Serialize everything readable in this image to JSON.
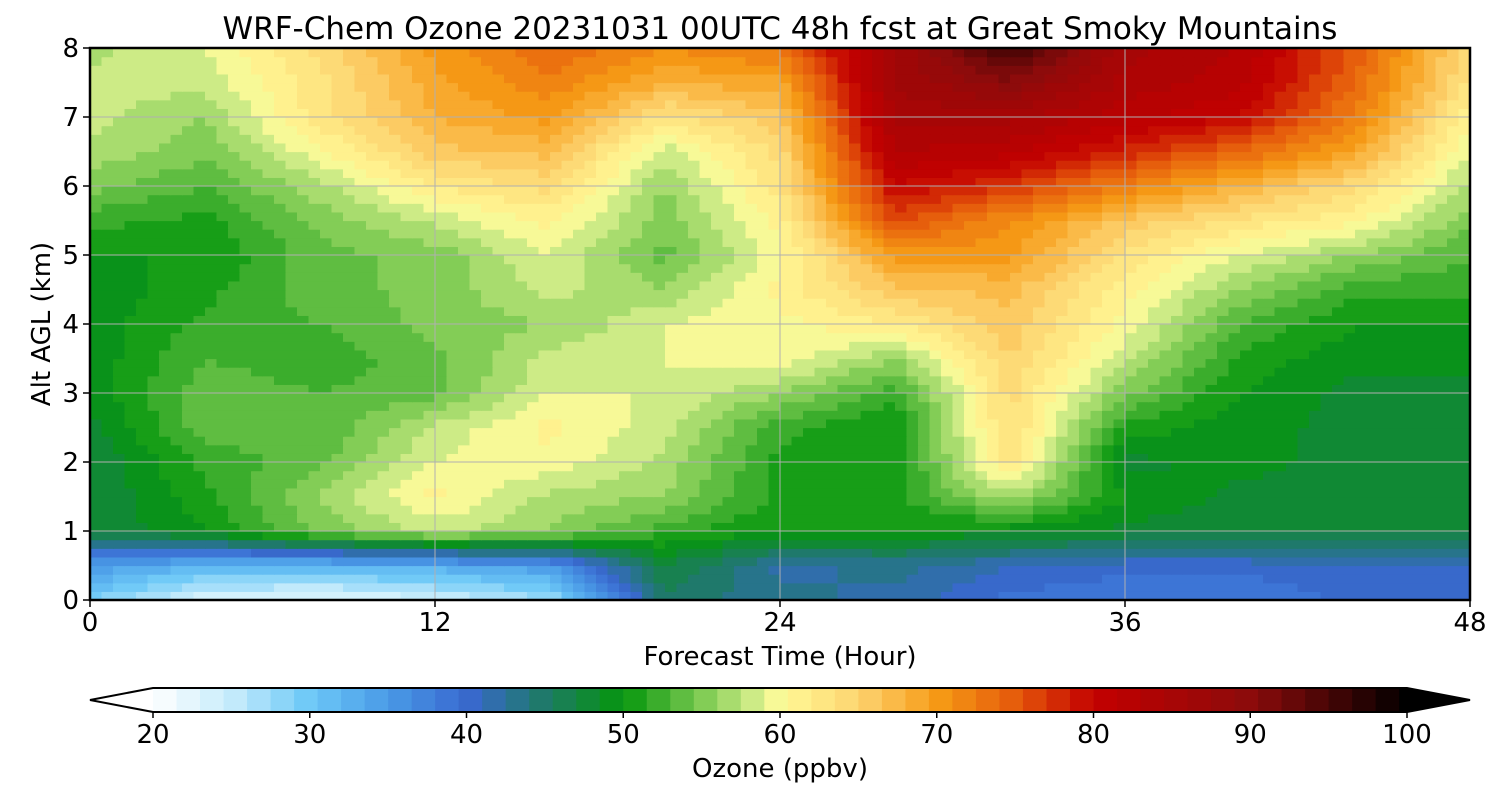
{
  "chart_data": {
    "type": "heatmap",
    "title": "WRF-Chem Ozone  20231031 00UTC 48h fcst at Great Smoky Mountains",
    "xlabel": "Forecast Time (Hour)",
    "ylabel": "Alt AGL (km)",
    "xlim": [
      0,
      48
    ],
    "ylim": [
      0,
      8
    ],
    "x_ticks": [
      "0",
      "12",
      "24",
      "36",
      "48"
    ],
    "y_ticks": [
      "0",
      "1",
      "2",
      "3",
      "4",
      "5",
      "6",
      "7",
      "8"
    ],
    "grid": true,
    "x": [
      0,
      4,
      8,
      12,
      16,
      20,
      24,
      28,
      32,
      36,
      40,
      44,
      48
    ],
    "y": [
      0,
      0.5,
      1,
      1.5,
      2,
      2.5,
      3,
      3.5,
      4,
      4.5,
      5,
      5.5,
      6,
      6.5,
      7,
      7.5,
      8
    ],
    "z": [
      [
        29,
        23,
        22,
        24,
        27,
        45,
        43,
        42,
        39,
        38,
        38,
        40,
        40
      ],
      [
        35,
        32,
        32,
        33,
        35,
        47,
        42,
        43,
        41,
        40,
        40,
        41,
        41
      ],
      [
        47,
        50,
        55,
        58,
        56,
        52,
        50,
        50,
        49,
        48,
        47,
        47,
        47
      ],
      [
        47,
        51,
        56,
        61,
        57,
        56,
        51,
        51,
        57,
        50,
        48,
        48,
        48
      ],
      [
        47,
        52,
        54,
        59,
        60,
        57,
        51,
        50,
        63,
        48,
        49,
        48,
        48
      ],
      [
        48,
        54,
        53,
        58,
        61,
        58,
        52,
        50,
        64,
        51,
        49,
        48,
        48
      ],
      [
        49,
        54,
        53,
        54,
        59,
        59,
        56,
        52,
        64,
        55,
        50,
        48,
        48
      ],
      [
        49,
        53,
        52,
        54,
        58,
        59,
        60,
        56,
        65,
        58,
        51,
        49,
        49
      ],
      [
        49,
        52,
        53,
        55,
        56,
        59,
        60,
        62,
        66,
        60,
        53,
        50,
        50
      ],
      [
        49,
        51,
        54,
        55,
        58,
        56,
        61,
        66,
        67,
        61,
        56,
        52,
        52
      ],
      [
        50,
        50,
        54,
        55,
        59,
        54,
        60,
        70,
        70,
        63,
        59,
        56,
        53
      ],
      [
        52,
        51,
        55,
        58,
        61,
        55,
        61,
        76,
        71,
        66,
        63,
        61,
        55
      ],
      [
        55,
        53,
        57,
        62,
        64,
        56,
        63,
        80,
        77,
        72,
        68,
        64,
        57
      ],
      [
        57,
        55,
        60,
        66,
        67,
        58,
        64,
        83,
        82,
        78,
        74,
        69,
        59
      ],
      [
        58,
        56,
        63,
        68,
        70,
        63,
        66,
        85,
        85,
        82,
        80,
        72,
        61
      ],
      [
        58,
        58,
        63,
        69,
        72,
        68,
        69,
        86,
        90,
        84,
        82,
        74,
        63
      ],
      [
        57,
        59,
        64,
        70,
        74,
        71,
        73,
        86,
        96,
        85,
        83,
        75,
        64
      ]
    ],
    "colorbar": {
      "label": "Ozone  (ppbv)",
      "min": 20,
      "max": 100,
      "step": 1.5,
      "ticks": [
        "20",
        "30",
        "40",
        "50",
        "60",
        "70",
        "80",
        "90",
        "100"
      ],
      "extend": "both",
      "color_stops": [
        [
          20,
          "#ffffff"
        ],
        [
          25,
          "#c6ecfb"
        ],
        [
          30,
          "#6cc8f7"
        ],
        [
          35,
          "#4a9ae6"
        ],
        [
          40,
          "#3968d0"
        ],
        [
          45,
          "#1e7a66"
        ],
        [
          50,
          "#05960c"
        ],
        [
          55,
          "#7dca52"
        ],
        [
          59,
          "#dff392"
        ],
        [
          60,
          "#fffb98"
        ],
        [
          65,
          "#fdd470"
        ],
        [
          70,
          "#f69b16"
        ],
        [
          75,
          "#e55b0b"
        ],
        [
          80,
          "#c30000"
        ],
        [
          90,
          "#8c0b0b"
        ],
        [
          100,
          "#000000"
        ]
      ]
    }
  }
}
